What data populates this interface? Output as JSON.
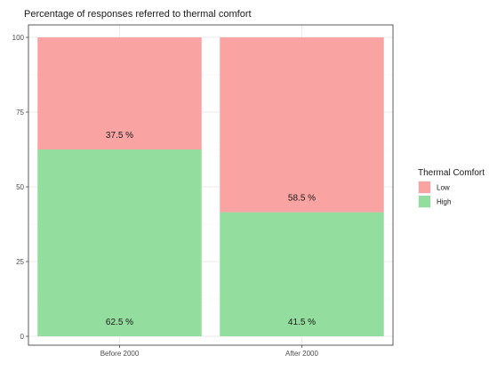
{
  "chart_data": {
    "type": "bar",
    "stacked": true,
    "title": "Percentage of responses referred to thermal comfort",
    "xlabel": "",
    "ylabel": "",
    "categories": [
      "Before 2000",
      "After 2000"
    ],
    "series": [
      {
        "name": "High",
        "values": [
          62.5,
          41.5
        ],
        "labels": [
          "62.5 %",
          "41.5 %"
        ],
        "color": "#93DE9E"
      },
      {
        "name": "Low",
        "values": [
          37.5,
          58.5
        ],
        "labels": [
          "37.5 %",
          "58.5 %"
        ],
        "color": "#F9A4A3"
      }
    ],
    "ylim": [
      0,
      100
    ],
    "yticks": [
      0,
      25,
      50,
      75,
      100
    ],
    "grid": true,
    "legend": {
      "title": "Thermal Comfort",
      "placement": "right",
      "entries": [
        "Low",
        "High"
      ]
    }
  }
}
